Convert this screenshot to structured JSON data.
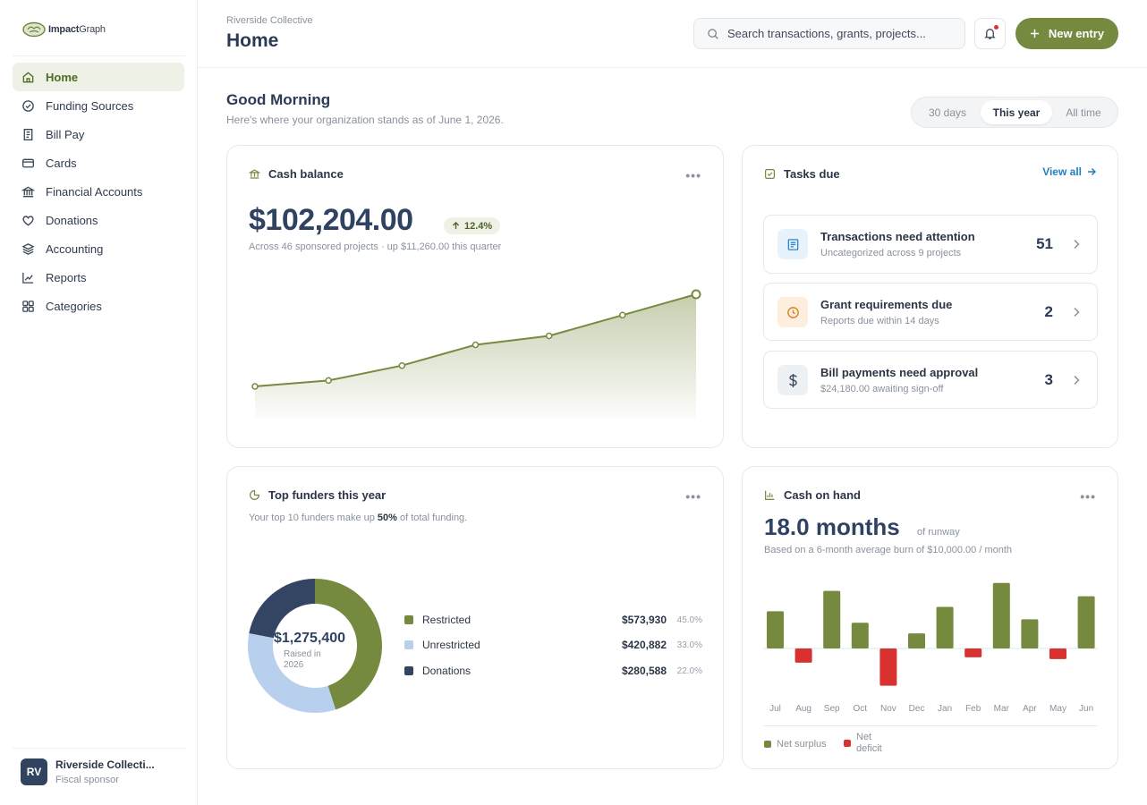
{
  "brand": {
    "name_bold": "Impact",
    "name_rest": "Graph"
  },
  "sidebar": {
    "items": [
      {
        "label": "Home",
        "icon": "home-icon",
        "active": true
      },
      {
        "label": "Funding Sources",
        "icon": "check-circle-icon"
      },
      {
        "label": "Bill Pay",
        "icon": "receipt-icon"
      },
      {
        "label": "Cards",
        "icon": "card-icon"
      },
      {
        "label": "Financial Accounts",
        "icon": "bank-icon"
      },
      {
        "label": "Donations",
        "icon": "heart-icon"
      },
      {
        "label": "Accounting",
        "icon": "layers-icon"
      },
      {
        "label": "Reports",
        "icon": "chart-line-icon"
      },
      {
        "label": "Categories",
        "icon": "grid-icon"
      }
    ],
    "user": {
      "initials": "RV",
      "name": "Riverside Collecti...",
      "role": "Fiscal sponsor"
    }
  },
  "header": {
    "org": "Riverside Collective",
    "title": "Home",
    "search_placeholder": "Search transactions, grants, projects...",
    "new_entry_label": "New entry"
  },
  "greeting": {
    "title": "Good Morning",
    "subtitle": "Here's where your organization stands as of June 1, 2026."
  },
  "range_tabs": [
    {
      "label": "30 days",
      "selected": false
    },
    {
      "label": "This year",
      "selected": true
    },
    {
      "label": "All time",
      "selected": false
    }
  ],
  "cash_balance": {
    "title": "Cash balance",
    "amount": "$102,204.00",
    "change": "12.4%",
    "subtitle": "Across 46 sponsored projects · up $11,260.00 this quarter"
  },
  "tasks": {
    "title": "Tasks due",
    "view_all": "View all",
    "items": [
      {
        "title": "Transactions need attention",
        "sub": "Uncategorized across 9 projects",
        "count": "51",
        "icon": "document-icon",
        "bg": "#e8f2fb",
        "fg": "#2a86c9"
      },
      {
        "title": "Grant requirements due",
        "sub": "Reports due within 14 days",
        "count": "2",
        "icon": "clock-icon",
        "bg": "#fdeedd",
        "fg": "#d9822b"
      },
      {
        "title": "Bill payments need approval",
        "sub": "$24,180.00 awaiting sign-off",
        "count": "3",
        "icon": "dollar-icon",
        "bg": "#eef1f4",
        "fg": "#3b4a5e"
      }
    ]
  },
  "funders": {
    "title": "Top funders this year",
    "subtitle_pre": "Your top 10 funders make up ",
    "subtitle_bold": "50%",
    "subtitle_post": " of total funding.",
    "center_amount": "$1,275,400",
    "center_label": "Raised in 2026",
    "legend": [
      {
        "name": "Restricted",
        "amount": "$573,930",
        "pct": "45.0%",
        "color": "#768a3f"
      },
      {
        "name": "Unrestricted",
        "amount": "$420,882",
        "pct": "33.0%",
        "color": "#b8cfee"
      },
      {
        "name": "Donations",
        "amount": "$280,588",
        "pct": "22.0%",
        "color": "#334562"
      }
    ]
  },
  "cash_on_hand": {
    "title": "Cash on hand",
    "value": "18.0 months",
    "unit": "of runway",
    "subtitle": "Based on a 6-month average burn of $10,000.00 / month",
    "legend_surplus": "Net surplus",
    "legend_deficit": "Net deficit",
    "colors": {
      "surplus": "#768a3f",
      "deficit": "#d8312f"
    }
  },
  "chart_data": [
    {
      "type": "area",
      "title": "Cash balance",
      "x": [
        1,
        2,
        3,
        4,
        5,
        6,
        7
      ],
      "series": [
        {
          "values": [
            10,
            12,
            17,
            24,
            27,
            34,
            41
          ]
        }
      ]
    },
    {
      "type": "pie",
      "title": "Top funders this year",
      "categories": [
        "Restricted",
        "Unrestricted",
        "Donations"
      ],
      "values": [
        45.0,
        33.0,
        22.0
      ]
    },
    {
      "type": "bar",
      "title": "Cash on hand",
      "categories": [
        "Jul",
        "Aug",
        "Sep",
        "Oct",
        "Nov",
        "Dec",
        "Jan",
        "Feb",
        "Mar",
        "Apr",
        "May",
        "Jun"
      ],
      "values": [
        42,
        -16,
        65,
        29,
        -42,
        17,
        47,
        -10,
        74,
        33,
        -12,
        59
      ],
      "series_names": [
        "Net surplus",
        "Net deficit"
      ]
    }
  ]
}
